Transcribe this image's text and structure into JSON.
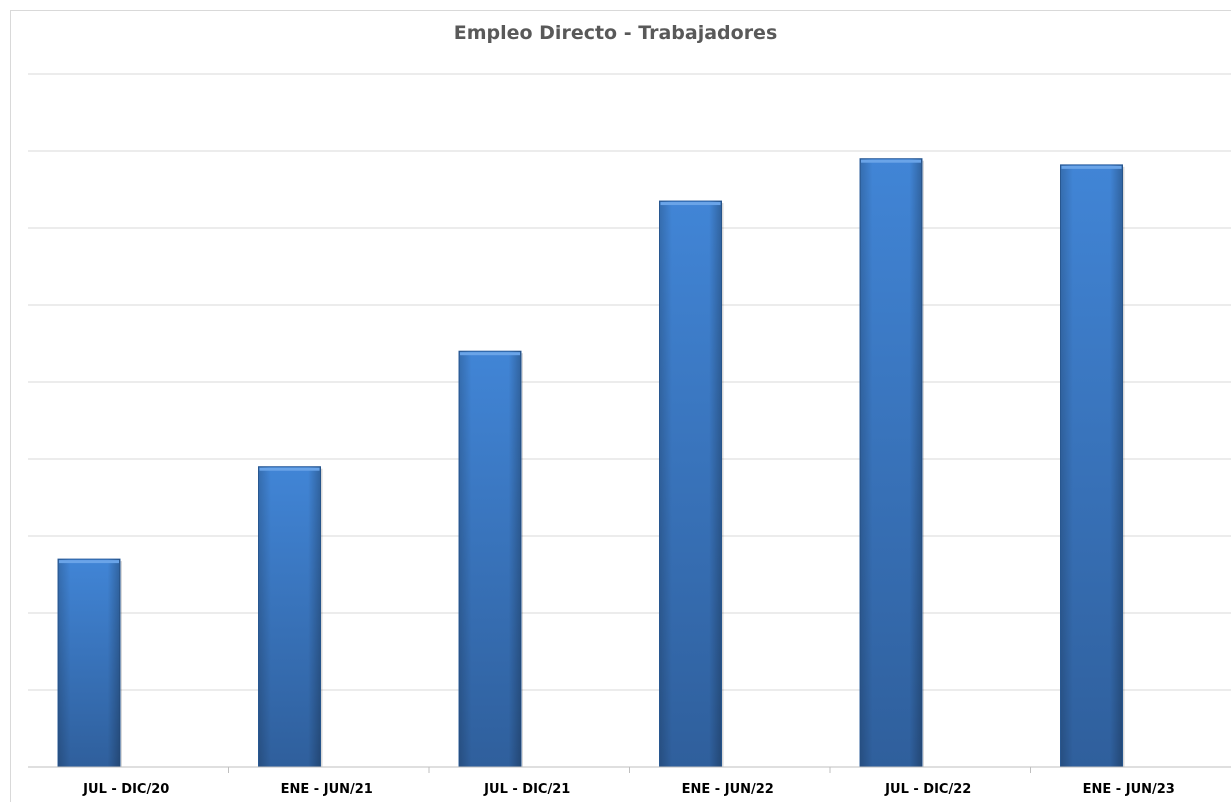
{
  "chart_data": {
    "type": "bar",
    "title": "Empleo Directo - Trabajadores",
    "xlabel": "",
    "ylabel": "",
    "categories": [
      "JUL - DIC/20",
      "ENE - JUN/21",
      "JUL - DIC/21",
      "ENE - JUN/22",
      "JUL - DIC/22",
      "ENE - JUN/23"
    ],
    "values": [
      2.7,
      3.9,
      5.4,
      7.35,
      7.9,
      7.82
    ],
    "ylim": [
      0,
      9
    ],
    "grid": true,
    "legend": "none",
    "bar_color": "#3a7bc8",
    "bar_color_dark": "#2c5f9e"
  }
}
